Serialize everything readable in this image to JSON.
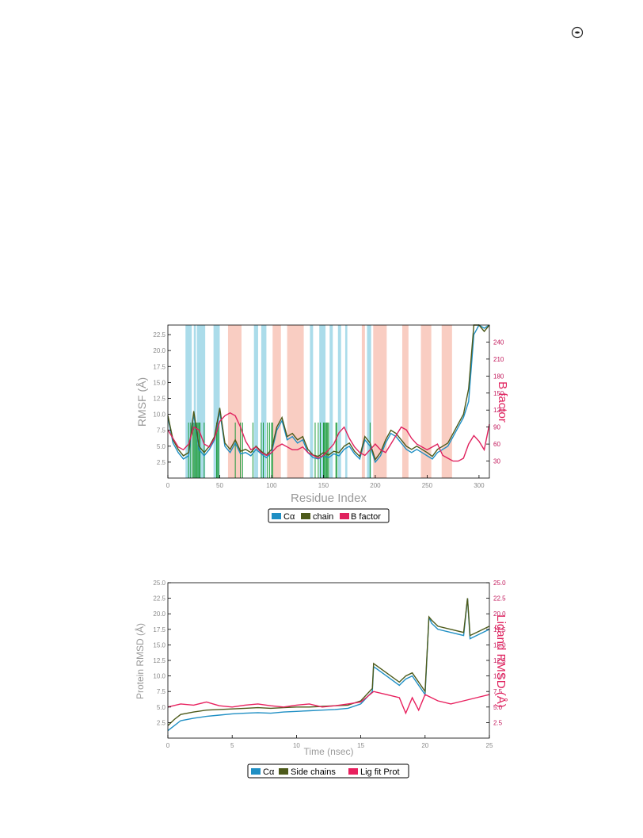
{
  "page": {
    "corner_icon": "circle-dot-icon"
  },
  "colors": {
    "ca": "#1f8fc4",
    "side": "#4d5a1a",
    "bfactor": "#e0225e",
    "lig": "#e8205e",
    "helix_band": "#8fd0e3",
    "strand_band": "#f7b8a8",
    "contact": "#1a9a3a",
    "axis_right": "#c2185b"
  },
  "chart_data": [
    {
      "type": "line",
      "ylabel": "RMSF (Å)",
      "ylabel_right": "B factor",
      "xlabel": "Residue Index",
      "xlim": [
        0,
        310
      ],
      "ylim": [
        0,
        24
      ],
      "ylim_right": [
        0,
        270
      ],
      "xticks": [
        0,
        50,
        100,
        150,
        200,
        250,
        300
      ],
      "yticks": [
        2.5,
        5.0,
        7.5,
        10.0,
        12.5,
        15.0,
        17.5,
        20.0,
        22.5
      ],
      "yticks_right": [
        30,
        60,
        90,
        120,
        150,
        180,
        210,
        240
      ],
      "helix_bands": [
        [
          17,
          23
        ],
        [
          25,
          27
        ],
        [
          28,
          36
        ],
        [
          44,
          50
        ],
        [
          83,
          87
        ],
        [
          90,
          95
        ],
        [
          137,
          140
        ],
        [
          146,
          152
        ],
        [
          156,
          159
        ],
        [
          164,
          167
        ],
        [
          171,
          173
        ],
        [
          192,
          196
        ]
      ],
      "strand_bands": [
        [
          58,
          71
        ],
        [
          101,
          109
        ],
        [
          115,
          131
        ],
        [
          187,
          190
        ],
        [
          198,
          211
        ],
        [
          226,
          232
        ],
        [
          244,
          254
        ],
        [
          264,
          274
        ]
      ],
      "contacts": [
        20,
        22,
        24,
        25,
        26,
        27,
        28,
        29,
        30,
        31,
        35,
        47,
        48,
        49,
        65,
        70,
        72,
        82,
        90,
        92,
        96,
        98,
        100,
        101,
        142,
        145,
        147,
        150,
        151,
        152,
        153,
        154,
        155,
        162,
        163,
        195
      ],
      "series": [
        {
          "name": "Cα",
          "x": [
            0,
            5,
            10,
            15,
            20,
            25,
            30,
            35,
            40,
            45,
            50,
            55,
            60,
            65,
            70,
            75,
            80,
            85,
            90,
            95,
            100,
            105,
            110,
            115,
            120,
            125,
            130,
            135,
            140,
            145,
            150,
            155,
            160,
            165,
            170,
            175,
            180,
            185,
            190,
            195,
            200,
            205,
            210,
            215,
            220,
            225,
            230,
            235,
            240,
            245,
            250,
            255,
            260,
            265,
            270,
            275,
            280,
            285,
            290,
            295,
            300,
            305,
            310
          ],
          "values": [
            9.5,
            5.5,
            4.0,
            3.0,
            3.5,
            10.0,
            4.5,
            3.5,
            4.5,
            6.0,
            10.5,
            5.0,
            4.0,
            5.5,
            3.8,
            4.0,
            3.5,
            4.5,
            3.8,
            3.2,
            4.0,
            7.5,
            9.0,
            6.0,
            6.5,
            5.5,
            6.0,
            4.0,
            3.2,
            3.0,
            3.5,
            3.2,
            3.8,
            3.5,
            4.5,
            5.0,
            3.8,
            3.0,
            6.0,
            5.0,
            2.5,
            3.5,
            5.5,
            7.0,
            6.5,
            5.5,
            4.5,
            4.0,
            4.5,
            4.0,
            3.5,
            3.0,
            4.0,
            4.5,
            5.0,
            6.5,
            8.0,
            9.5,
            12.0,
            22.5,
            24.0,
            23.5,
            24.0
          ]
        },
        {
          "name": "chain",
          "x": [
            0,
            5,
            10,
            15,
            20,
            25,
            30,
            35,
            40,
            45,
            50,
            55,
            60,
            65,
            70,
            75,
            80,
            85,
            90,
            95,
            100,
            105,
            110,
            115,
            120,
            125,
            130,
            135,
            140,
            145,
            150,
            155,
            160,
            165,
            170,
            175,
            180,
            185,
            190,
            195,
            200,
            205,
            210,
            215,
            220,
            225,
            230,
            235,
            240,
            245,
            250,
            255,
            260,
            265,
            270,
            275,
            280,
            285,
            290,
            295,
            300,
            305,
            310
          ],
          "values": [
            9.8,
            6.0,
            4.5,
            3.5,
            4.0,
            10.5,
            5.0,
            4.0,
            5.0,
            6.5,
            11.0,
            5.5,
            4.5,
            6.0,
            4.2,
            4.5,
            4.0,
            5.0,
            4.2,
            3.6,
            4.5,
            8.0,
            9.5,
            6.5,
            7.0,
            6.0,
            6.5,
            4.5,
            3.6,
            3.4,
            4.0,
            3.6,
            4.2,
            4.0,
            5.0,
            5.5,
            4.2,
            3.4,
            6.5,
            5.5,
            2.9,
            4.0,
            6.0,
            7.5,
            7.0,
            6.0,
            5.0,
            4.5,
            5.0,
            4.5,
            4.0,
            3.4,
            4.5,
            5.0,
            5.5,
            7.0,
            8.5,
            10.0,
            14.0,
            24.0,
            24.0,
            23.0,
            24.0
          ]
        },
        {
          "name": "B factor",
          "x": [
            0,
            5,
            10,
            15,
            20,
            25,
            30,
            35,
            40,
            45,
            50,
            55,
            60,
            65,
            70,
            75,
            80,
            85,
            90,
            95,
            100,
            105,
            110,
            115,
            120,
            125,
            130,
            135,
            140,
            145,
            150,
            155,
            160,
            165,
            170,
            175,
            180,
            185,
            190,
            195,
            200,
            205,
            210,
            215,
            220,
            225,
            230,
            235,
            240,
            245,
            250,
            255,
            260,
            265,
            270,
            275,
            280,
            285,
            290,
            295,
            300,
            305,
            310
          ],
          "values": [
            85,
            70,
            55,
            50,
            60,
            90,
            85,
            60,
            55,
            70,
            100,
            110,
            115,
            110,
            90,
            65,
            50,
            55,
            45,
            40,
            45,
            55,
            60,
            55,
            50,
            50,
            55,
            45,
            40,
            35,
            40,
            50,
            60,
            80,
            90,
            70,
            55,
            45,
            40,
            50,
            60,
            50,
            45,
            60,
            75,
            90,
            85,
            70,
            60,
            55,
            50,
            55,
            60,
            40,
            35,
            30,
            30,
            35,
            60,
            75,
            65,
            50,
            95
          ]
        }
      ],
      "legend": [
        "Cα",
        "chain",
        "B factor"
      ],
      "legend_position": "bottom-center"
    },
    {
      "type": "line",
      "ylabel": "Protein RMSD (Å)",
      "ylabel_right": "Ligand RMSD (Å)",
      "xlabel": "Time (nsec)",
      "xlim": [
        0,
        25
      ],
      "ylim": [
        0,
        25
      ],
      "ylim_right": [
        0,
        25
      ],
      "xticks": [
        0,
        5,
        10,
        15,
        20,
        25
      ],
      "yticks": [
        2.5,
        5.0,
        7.5,
        10.0,
        12.5,
        15.0,
        17.5,
        20.0,
        22.5,
        25.0
      ],
      "yticks_right": [
        2.5,
        5.0,
        7.5,
        10.0,
        12.5,
        15.0,
        17.5,
        20.0,
        22.5,
        25.0
      ],
      "series": [
        {
          "name": "Cα",
          "x": [
            0,
            0.5,
            1,
            2,
            3,
            4,
            5,
            6,
            7,
            8,
            9,
            10,
            11,
            12,
            13,
            14,
            15,
            15.9,
            16,
            17,
            18,
            18.5,
            19,
            19.5,
            20,
            20.3,
            20.5,
            21,
            22,
            23,
            23.3,
            23.5,
            24,
            25
          ],
          "values": [
            1.2,
            2.0,
            2.8,
            3.2,
            3.5,
            3.7,
            3.9,
            4.0,
            4.1,
            4.0,
            4.2,
            4.3,
            4.4,
            4.5,
            4.6,
            4.8,
            5.5,
            7.5,
            11.5,
            10.0,
            8.5,
            9.5,
            10.0,
            8.5,
            7.0,
            19.5,
            18.5,
            17.5,
            17.0,
            16.5,
            22.5,
            16.0,
            16.5,
            17.5
          ]
        },
        {
          "name": "Side chains",
          "x": [
            0,
            0.5,
            1,
            2,
            3,
            4,
            5,
            6,
            7,
            8,
            9,
            10,
            11,
            12,
            13,
            14,
            15,
            15.9,
            16,
            17,
            18,
            18.5,
            19,
            19.5,
            20,
            20.3,
            20.5,
            21,
            22,
            23,
            23.3,
            23.5,
            24,
            25
          ],
          "values": [
            2.0,
            3.0,
            3.8,
            4.2,
            4.5,
            4.6,
            4.7,
            4.8,
            4.9,
            4.8,
            4.9,
            5.0,
            5.0,
            5.1,
            5.2,
            5.3,
            6.0,
            8.0,
            12.0,
            10.5,
            9.0,
            10.0,
            10.5,
            9.0,
            7.5,
            19.5,
            19.0,
            18.0,
            17.5,
            17.0,
            22.5,
            16.5,
            17.0,
            18.0
          ]
        },
        {
          "name": "Lig fit Prot",
          "x": [
            0,
            1,
            2,
            3,
            4,
            5,
            6,
            7,
            8,
            9,
            10,
            11,
            12,
            13,
            14,
            15,
            16,
            17,
            18,
            18.5,
            19,
            19.5,
            20,
            20.5,
            21,
            22,
            23,
            24,
            25
          ],
          "values": [
            5.0,
            5.5,
            5.3,
            5.8,
            5.2,
            5.0,
            5.3,
            5.5,
            5.2,
            5.0,
            5.3,
            5.5,
            5.0,
            5.2,
            5.5,
            5.8,
            7.5,
            7.0,
            6.5,
            4.0,
            6.5,
            4.5,
            7.0,
            6.5,
            6.0,
            5.5,
            6.0,
            6.5,
            7.0
          ]
        }
      ],
      "legend": [
        "Cα",
        "Side chains",
        "Lig fit Prot"
      ],
      "legend_position": "bottom-center"
    }
  ]
}
